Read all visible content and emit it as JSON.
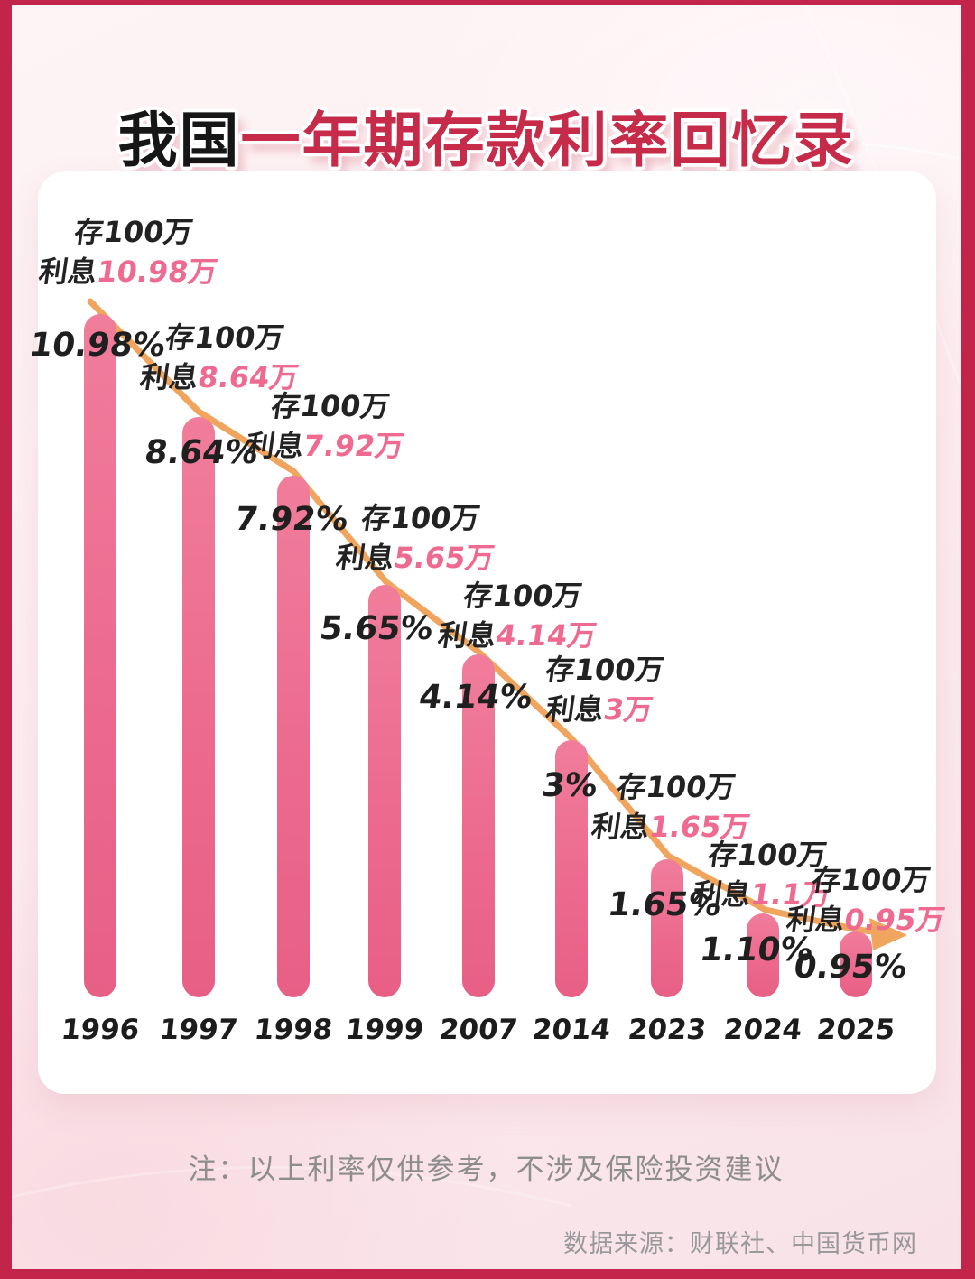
{
  "title": {
    "prefix": "我国",
    "main": "一年期存款利率回忆录"
  },
  "note": "注：以上利率仅供参考，不涉及保险投资建议",
  "source": "数据来源：财联社、中国货币网",
  "colors": {
    "frame": "#c2244a",
    "background": "#fcecf0",
    "card": "#ffffff",
    "bar": "#ec6a8e",
    "trend_line": "#f0a55e",
    "title_main": "#c62b49",
    "title_prefix": "#161616",
    "interest_value_pink": "#ee6a90",
    "text_black": "#1f1f1f",
    "note_gray": "#8d8d8d",
    "source_gray": "#98989a"
  },
  "chart_data": {
    "type": "bar",
    "title": "我国一年期存款利率回忆录",
    "categories": [
      "1996",
      "1997",
      "1998",
      "1999",
      "2007",
      "2014",
      "2023",
      "2024",
      "2025"
    ],
    "values": [
      10.98,
      8.64,
      7.92,
      5.65,
      4.14,
      3,
      1.65,
      1.1,
      0.95
    ],
    "unit": "%",
    "bar_labels": [
      "10.98%",
      "8.64%",
      "7.92%",
      "5.65%",
      "4.14%",
      "3%",
      "1.65%",
      "1.10%",
      "0.95%"
    ],
    "annotations": [
      {
        "line1": "存100万",
        "interest_prefix": "利息",
        "interest_value": "10.98万"
      },
      {
        "line1": "存100万",
        "interest_prefix": "利息",
        "interest_value": "8.64万"
      },
      {
        "line1": "存100万",
        "interest_prefix": "利息",
        "interest_value": "7.92万"
      },
      {
        "line1": "存100万",
        "interest_prefix": "利息",
        "interest_value": "5.65万"
      },
      {
        "line1": "存100万",
        "interest_prefix": "利息",
        "interest_value": "4.14万"
      },
      {
        "line1": "存100万",
        "interest_prefix": "利息",
        "interest_value": "3万"
      },
      {
        "line1": "存100万",
        "interest_prefix": "利息",
        "interest_value": "1.65万"
      },
      {
        "line1": "存100万",
        "interest_prefix": "利息",
        "interest_value": "1.1万"
      },
      {
        "line1": "存100万",
        "interest_prefix": "利息",
        "interest_value": "0.95万"
      }
    ],
    "ylim": [
      0,
      12
    ],
    "grid": false,
    "legend": null,
    "trend_arrow": "orange descending line through bar tops ending in right-pointing arrowhead"
  }
}
